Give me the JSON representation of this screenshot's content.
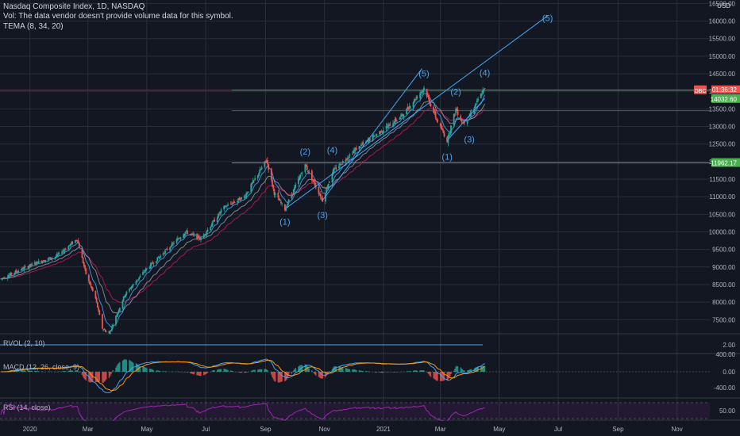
{
  "header": {
    "title": "Nasdaq Composite Index, 1D, NASDAQ",
    "vol_note": "Vol: The data vendor doesn't provide volume data for this symbol.",
    "tema": "TEMA (8, 34, 20)",
    "currency": "USD"
  },
  "colors": {
    "background": "#131722",
    "grid": "#2a2e39",
    "up": "#26a69a",
    "down": "#ef5350",
    "wave": "#42a5f5",
    "ema_red": "#c2185b",
    "ema_gray": "#9598a1",
    "level_green": "#4caf50",
    "rsi": "#9c27b0"
  },
  "price_badges": {
    "symbol": "DBC",
    "countdown": "01:36:32",
    "last": "14032.60",
    "support": "11962.17"
  },
  "panes": {
    "rvol": {
      "label": "RVOL (2, 10)",
      "tick": "2.00"
    },
    "macd": {
      "label": "MACD (12, 26, close, 9)",
      "ticks": [
        "400.00",
        "0.00",
        "-400.00"
      ]
    },
    "rsi": {
      "label": "RSI (14, close)",
      "tick": "50.00"
    }
  },
  "chart_data": {
    "type": "candlestick",
    "title": "Nasdaq Composite Index, 1D, NASDAQ",
    "ylim": [
      7100,
      16600
    ],
    "yticks": [
      7500,
      8000,
      8500,
      9000,
      9500,
      10000,
      10500,
      11000,
      11500,
      12000,
      12500,
      13000,
      13500,
      14000,
      14500,
      15000,
      15500,
      16000,
      16500
    ],
    "xticks": [
      {
        "date": "2020-01-01",
        "label": "2020"
      },
      {
        "date": "2020-03-01",
        "label": "Mar"
      },
      {
        "date": "2020-05-01",
        "label": "May"
      },
      {
        "date": "2020-07-01",
        "label": "Jul"
      },
      {
        "date": "2020-09-01",
        "label": "Sep"
      },
      {
        "date": "2020-11-01",
        "label": "Nov"
      },
      {
        "date": "2021-01-01",
        "label": "2021"
      },
      {
        "date": "2021-03-01",
        "label": "Mar"
      },
      {
        "date": "2021-05-01",
        "label": "May"
      },
      {
        "date": "2021-07-01",
        "label": "Jul"
      },
      {
        "date": "2021-09-01",
        "label": "Sep"
      },
      {
        "date": "2021-11-01",
        "label": "Nov"
      }
    ],
    "xrange": [
      "2019-12-01",
      "2021-12-05"
    ],
    "price_path": [
      [
        "2019-12-01",
        8650
      ],
      [
        "2019-12-20",
        8900
      ],
      [
        "2020-01-10",
        9150
      ],
      [
        "2020-01-28",
        9300
      ],
      [
        "2020-02-19",
        9800
      ],
      [
        "2020-02-28",
        8800
      ],
      [
        "2020-03-09",
        8100
      ],
      [
        "2020-03-16",
        7250
      ],
      [
        "2020-03-23",
        7100
      ],
      [
        "2020-04-08",
        8200
      ],
      [
        "2020-04-29",
        8900
      ],
      [
        "2020-05-20",
        9450
      ],
      [
        "2020-06-10",
        10000
      ],
      [
        "2020-06-26",
        9800
      ],
      [
        "2020-07-20",
        10700
      ],
      [
        "2020-08-10",
        11000
      ],
      [
        "2020-09-02",
        12050
      ],
      [
        "2020-09-10",
        11100
      ],
      [
        "2020-09-21",
        10650
      ],
      [
        "2020-10-12",
        11900
      ],
      [
        "2020-10-30",
        10900
      ],
      [
        "2020-11-09",
        11700
      ],
      [
        "2020-12-01",
        12300
      ],
      [
        "2020-12-31",
        12900
      ],
      [
        "2021-01-20",
        13300
      ],
      [
        "2021-02-12",
        14100
      ],
      [
        "2021-02-25",
        13200
      ],
      [
        "2021-03-08",
        12600
      ],
      [
        "2021-03-17",
        13500
      ],
      [
        "2021-03-24",
        13100
      ],
      [
        "2021-03-31",
        13300
      ],
      [
        "2021-04-14",
        14000
      ],
      [
        "2021-04-16",
        14052
      ]
    ],
    "horizontal_levels": [
      14032.6,
      11962.17
    ],
    "channel_line": {
      "from": [
        "2020-09-21",
        10650
      ],
      "to": [
        "2021-06-20",
        16150
      ]
    },
    "wave_lines": [
      {
        "from": [
          "2020-10-30",
          10900
        ],
        "to": [
          "2021-02-10",
          14650
        ]
      },
      {
        "from": [
          "2021-03-08",
          12600
        ],
        "to": [
          "2021-04-16",
          13800
        ]
      }
    ],
    "annotations": [
      {
        "text": "(1)",
        "date": "2020-09-21",
        "price": 10200
      },
      {
        "text": "(2)",
        "date": "2020-10-12",
        "price": 12200
      },
      {
        "text": "(3)",
        "date": "2020-10-30",
        "price": 10400
      },
      {
        "text": "(4)",
        "date": "2020-11-09",
        "price": 12250
      },
      {
        "text": "(5)",
        "date": "2021-02-12",
        "price": 14420
      },
      {
        "text": "(1)",
        "date": "2021-03-08",
        "price": 12050
      },
      {
        "text": "(2)",
        "date": "2021-03-17",
        "price": 13900
      },
      {
        "text": "(3)",
        "date": "2021-03-31",
        "price": 12550
      },
      {
        "text": "(4)",
        "date": "2021-04-16",
        "price": 14440
      },
      {
        "text": "(5)",
        "date": "2021-06-20",
        "price": 16000
      }
    ]
  }
}
